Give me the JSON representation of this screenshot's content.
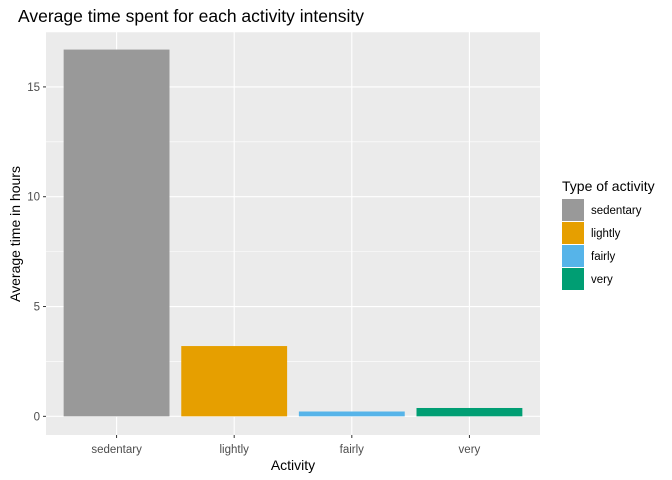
{
  "chart_data": {
    "type": "bar",
    "title": "Average time spent for each activity intensity",
    "xlabel": "Activity",
    "ylabel": "Average time in hours",
    "categories": [
      "sedentary",
      "lightly",
      "fairly",
      "very"
    ],
    "values": [
      16.7,
      3.2,
      0.22,
      0.38
    ],
    "colors": [
      "#999999",
      "#E69F00",
      "#56B4E9",
      "#009E73"
    ],
    "ylim": [
      -0.85,
      17.5
    ],
    "yticks": [
      0,
      5,
      10,
      15
    ],
    "ytick_labels": [
      "0",
      "5",
      "10",
      "15"
    ],
    "grid": true,
    "legend": {
      "title": "Type of activity",
      "placement": "right",
      "items": [
        "sedentary",
        "lightly",
        "fairly",
        "very"
      ]
    }
  }
}
